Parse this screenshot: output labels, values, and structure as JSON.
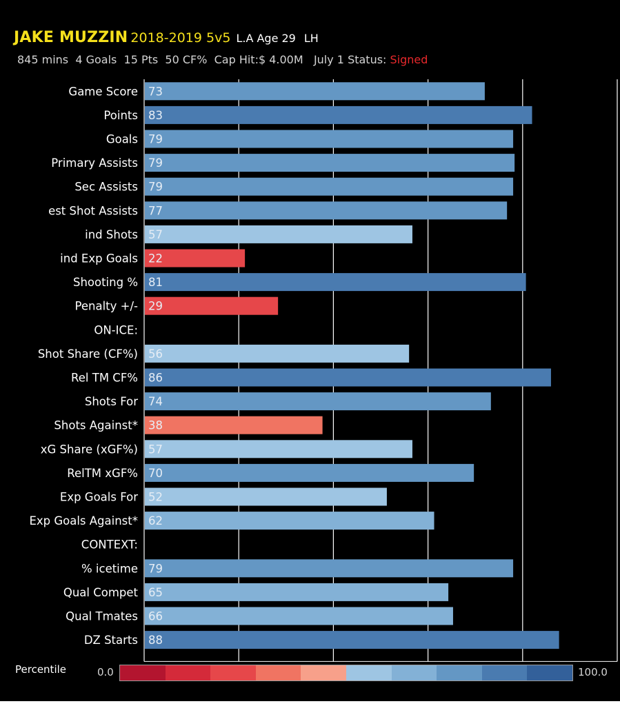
{
  "header": {
    "player_name": "JAKE MUZZIN",
    "season": "2018-2019 5v5",
    "team_age": "L.A Age 29",
    "hand": "LH",
    "mins": "845 mins",
    "goals": "4  Goals",
    "pts": "15  Pts",
    "cf": "50  CF%",
    "cap_hit": "Cap Hit:$ 4.00M",
    "status_label": "July 1 Status:",
    "status_value": "Signed",
    "status_color": "#e8282b"
  },
  "chart_data": {
    "type": "bar",
    "orientation": "horizontal",
    "xlim": [
      0,
      100
    ],
    "grid": true,
    "categories": [
      "Game Score",
      "Points",
      "Goals",
      "Primary Assists",
      "Sec Assists",
      "est Shot Assists",
      "ind Shots",
      "ind Exp Goals",
      "Shooting %",
      "Penalty +/-",
      "ON-ICE:",
      "Shot Share (CF%)",
      "Rel TM CF%",
      "Shots For",
      "Shots Against*",
      "xG Share (xGF%)",
      "RelTM xGF%",
      "Exp Goals For",
      "Exp Goals Against*",
      "CONTEXT:",
      "% icetime",
      "Qual Compet",
      "Qual Tmates",
      "DZ Starts"
    ],
    "values": [
      73,
      83,
      79,
      79,
      79,
      77,
      57,
      22,
      81,
      29,
      null,
      56,
      86,
      74,
      38,
      57,
      70,
      52,
      62,
      null,
      79,
      65,
      66,
      88
    ],
    "value_labels": [
      "73",
      "83",
      "79",
      "79",
      "79",
      "77",
      "57",
      "22",
      "81",
      "29",
      "",
      "56",
      "86",
      "74",
      "38",
      "57",
      "70",
      "52",
      "62",
      "",
      "79",
      "65",
      "66",
      "88"
    ],
    "bar_values": [
      72,
      82,
      78,
      78.3,
      78,
      76.7,
      56.7,
      21.3,
      80.7,
      28.3,
      null,
      56,
      86,
      73.3,
      37.7,
      56.7,
      69.7,
      51.3,
      61.3,
      null,
      78,
      64.3,
      65.3,
      87.7
    ],
    "legend": {
      "title": "Percentile",
      "min_label": "0.0",
      "max_label": "100.0",
      "colors": [
        "#b3152f",
        "#d42a3a",
        "#e6474a",
        "#f07462",
        "#f7a08a",
        "#9ec5e3",
        "#83b1d6",
        "#6497c4",
        "#4a7bb0",
        "#33609a"
      ]
    }
  }
}
